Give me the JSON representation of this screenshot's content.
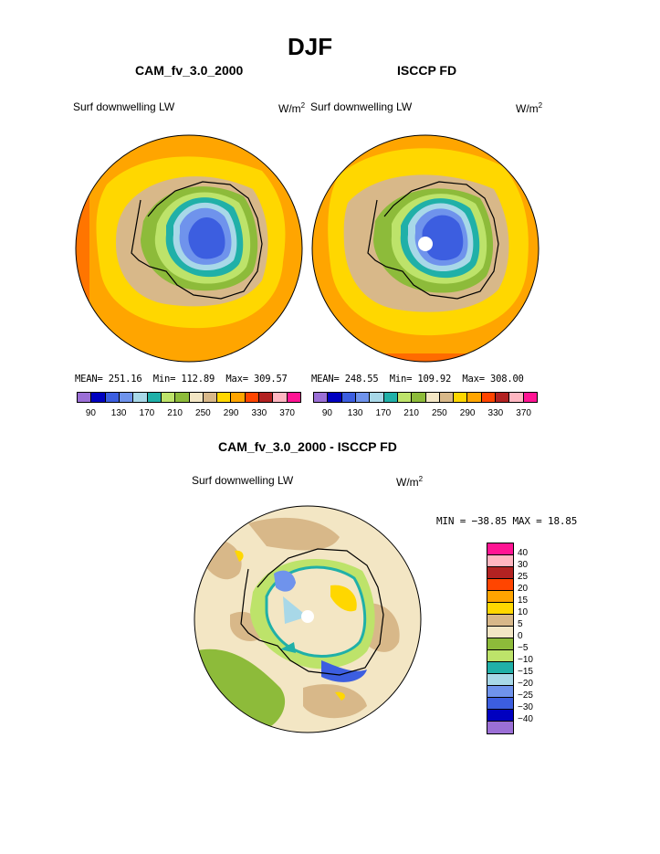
{
  "page_title": "DJF",
  "panels": [
    {
      "title": "CAM_fv_3.0_2000",
      "variable": "Surf downwelling LW",
      "units_base": "W/m",
      "units_exp": "2",
      "stats": {
        "mean_label": "MEAN=",
        "mean": "251.16",
        "min_label": "Min=",
        "min": "112.89",
        "max_label": "Max=",
        "max": "309.57"
      }
    },
    {
      "title": "ISCCP FD",
      "variable": "Surf downwelling LW",
      "units_base": "W/m",
      "units_exp": "2",
      "stats": {
        "mean_label": "MEAN=",
        "mean": "248.55",
        "min_label": "Min=",
        "min": "109.92",
        "max_label": "Max=",
        "max": "308.00"
      }
    },
    {
      "title": "CAM_fv_3.0_2000 - ISCCP FD",
      "variable": "Surf downwelling LW",
      "units_base": "W/m",
      "units_exp": "2",
      "stats_text": "MIN = −38.85 MAX =   18.85"
    }
  ],
  "abs_colorbar": {
    "colors": [
      "#9b6fd6",
      "#0000c0",
      "#3c5ee0",
      "#6f93ec",
      "#a8d8e8",
      "#20b0a8",
      "#bde36a",
      "#8dbb3a",
      "#f3e6c4",
      "#d8b889",
      "#ffd700",
      "#ffa500",
      "#ff4500",
      "#b22222",
      "#ffb6c1",
      "#ff1493"
    ],
    "tick_labels": [
      "90",
      "130",
      "170",
      "210",
      "250",
      "290",
      "330",
      "370"
    ]
  },
  "diff_colorbar": {
    "colors": [
      "#ff1493",
      "#ffb6c1",
      "#b22222",
      "#ff4500",
      "#ffa500",
      "#ffd700",
      "#d8b889",
      "#f3e6c4",
      "#8dbb3a",
      "#bde36a",
      "#20b0a8",
      "#a8d8e8",
      "#6f93ec",
      "#3c5ee0",
      "#0000c0",
      "#9b6fd6"
    ],
    "tick_labels": [
      "40",
      "30",
      "25",
      "20",
      "15",
      "10",
      "5",
      "0",
      "−5",
      "−10",
      "−15",
      "−20",
      "−25",
      "−30",
      "−40"
    ]
  }
}
